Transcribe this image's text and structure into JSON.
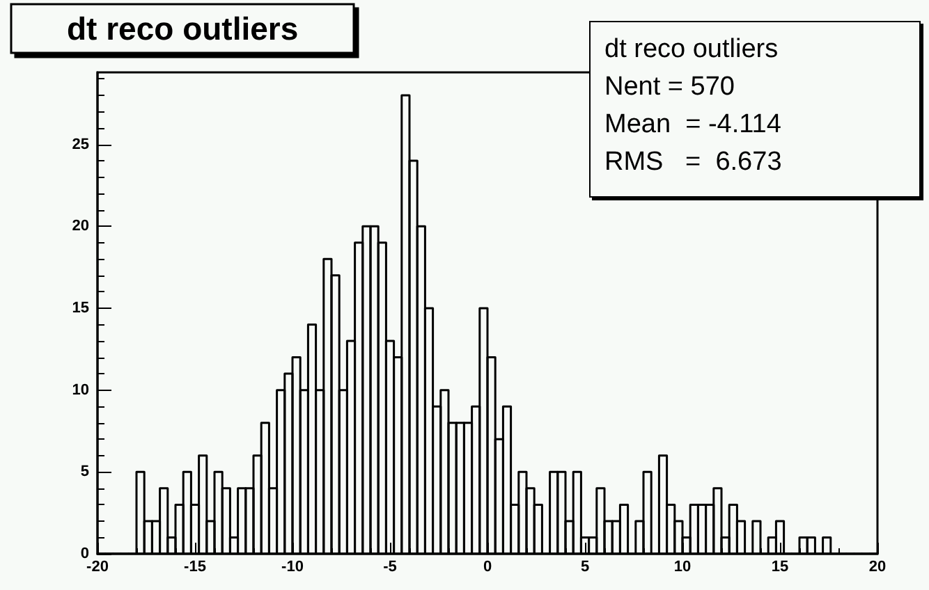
{
  "chart_data": {
    "type": "histogram",
    "title": "dt reco outliers",
    "annotations": [
      "dt reco outliers",
      "Nent = 570",
      "Mean  = -4.114",
      "RMS   =  6.673"
    ],
    "bins": [
      -20,
      -19.6,
      -19.2,
      -18.8,
      -18.4,
      -18,
      -17.6,
      -17.2,
      -16.8,
      -16.4,
      -16,
      -15.6,
      -15.2,
      -14.8,
      -14.4,
      -14,
      -13.6,
      -13.2,
      -12.8,
      -12.4,
      -12,
      -11.6,
      -11.2,
      -10.8,
      -10.4,
      -10,
      -9.6,
      -9.2,
      -8.8,
      -8.4,
      -8,
      -7.6,
      -7.2,
      -6.8,
      -6.4,
      -6,
      -5.6,
      -5.2,
      -4.8,
      -4.4,
      -4,
      -3.6,
      -3.2,
      -2.8,
      -2.4,
      -2,
      -1.6,
      -1.2,
      -0.8,
      -0.4,
      0,
      0.4,
      0.8,
      1.2,
      1.6,
      2,
      2.4,
      2.8,
      3.2,
      3.6,
      4,
      4.4,
      4.8,
      5.2,
      5.6,
      6,
      6.4,
      6.8,
      7.2,
      7.6,
      8,
      8.4,
      8.8,
      9.2,
      9.6,
      10,
      10.4,
      10.8,
      11.2,
      11.6,
      12,
      12.4,
      12.8,
      13.2,
      13.6,
      14,
      14.4,
      14.8,
      15.2,
      15.6,
      16,
      16.4,
      16.8,
      17.2,
      17.6,
      18,
      18.4,
      18.8,
      19.2,
      19.6,
      20
    ],
    "values": [
      0,
      0,
      0,
      0,
      0,
      5,
      2,
      2,
      4,
      1,
      3,
      5,
      3,
      6,
      2,
      5,
      4,
      1,
      4,
      4,
      6,
      8,
      4,
      10,
      11,
      12,
      10,
      14,
      10,
      18,
      17,
      10,
      13,
      19,
      20,
      20,
      19,
      13,
      12,
      28,
      24,
      20,
      15,
      9,
      10,
      8,
      8,
      8,
      9,
      15,
      12,
      7,
      9,
      3,
      5,
      4,
      3,
      0,
      5,
      5,
      2,
      5,
      1,
      1,
      4,
      2,
      2,
      3,
      0,
      2,
      5,
      0,
      6,
      3,
      2,
      1,
      3,
      3,
      3,
      4,
      1,
      3,
      2,
      0,
      2,
      0,
      1,
      2,
      0,
      0,
      1,
      1,
      0,
      1,
      0,
      0,
      0,
      0,
      0,
      0
    ],
    "color": "#000000",
    "xlim": [
      -20,
      20
    ],
    "xticks": [
      -20,
      -15,
      -10,
      -5,
      0,
      5,
      10,
      15,
      20
    ],
    "ylim": [
      0,
      29.4
    ],
    "yticks": [
      0,
      5,
      10,
      15,
      20,
      25
    ],
    "grid": false
  }
}
